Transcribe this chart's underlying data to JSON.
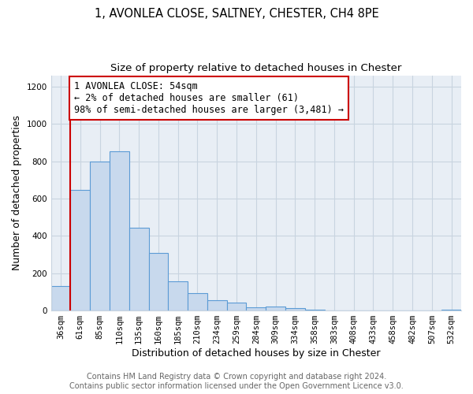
{
  "title": "1, AVONLEA CLOSE, SALTNEY, CHESTER, CH4 8PE",
  "subtitle": "Size of property relative to detached houses in Chester",
  "xlabel": "Distribution of detached houses by size in Chester",
  "ylabel": "Number of detached properties",
  "bar_labels": [
    "36sqm",
    "61sqm",
    "85sqm",
    "110sqm",
    "135sqm",
    "160sqm",
    "185sqm",
    "210sqm",
    "234sqm",
    "259sqm",
    "284sqm",
    "309sqm",
    "334sqm",
    "358sqm",
    "383sqm",
    "408sqm",
    "433sqm",
    "458sqm",
    "482sqm",
    "507sqm",
    "532sqm"
  ],
  "bar_heights": [
    130,
    645,
    800,
    855,
    445,
    310,
    158,
    95,
    55,
    42,
    18,
    22,
    12,
    5,
    2,
    1,
    0,
    0,
    0,
    0,
    5
  ],
  "bar_color": "#c8d9ed",
  "bar_edge_color": "#5b9bd5",
  "ylim": [
    0,
    1260
  ],
  "yticks": [
    0,
    200,
    400,
    600,
    800,
    1000,
    1200
  ],
  "annotation_title": "1 AVONLEA CLOSE: 54sqm",
  "annotation_line1": "← 2% of detached houses are smaller (61)",
  "annotation_line2": "98% of semi-detached houses are larger (3,481) →",
  "annotation_box_color": "#ffffff",
  "annotation_box_edge": "#cc0000",
  "property_line_color": "#cc0000",
  "footer_line1": "Contains HM Land Registry data © Crown copyright and database right 2024.",
  "footer_line2": "Contains public sector information licensed under the Open Government Licence v3.0.",
  "background_color": "#e8eef5",
  "grid_color": "#c8d4e0",
  "title_fontsize": 10.5,
  "subtitle_fontsize": 9.5,
  "axis_label_fontsize": 9,
  "tick_fontsize": 7.5,
  "footer_fontsize": 7,
  "annotation_fontsize": 8.5
}
